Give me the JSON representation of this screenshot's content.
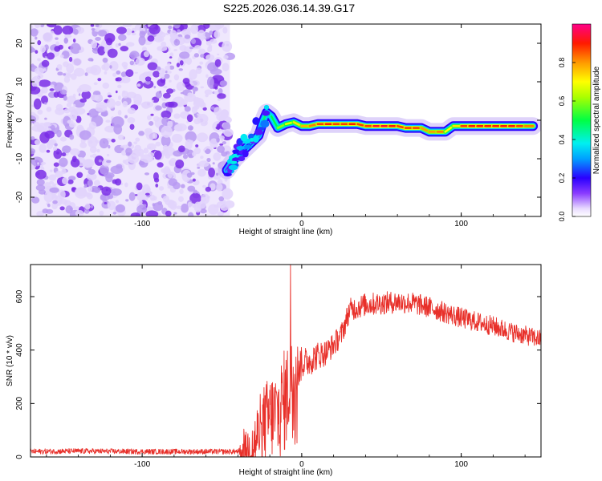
{
  "title": "S225.2026.036.14.39.G17",
  "colors": {
    "background": "#ffffff",
    "axis": "#000000",
    "snr_line": "#e8302a",
    "noise_light": "#e2d4fb",
    "noise_mid": "#b99af2",
    "noise_dark": "#7a2ee6"
  },
  "chart_data": [
    {
      "type": "heatmap",
      "name": "spectrogram",
      "xlabel": "Height of straight line (km)",
      "ylabel": "Frequency (Hz)",
      "xlim": [
        -170,
        150
      ],
      "ylim": [
        -25,
        25
      ],
      "xticks": [
        -100,
        0,
        100
      ],
      "xtick_labels": [
        "-100",
        "0",
        "100"
      ],
      "yticks": [
        -20,
        -10,
        0,
        10,
        20
      ],
      "ytick_labels": [
        "-20",
        "-10",
        "0",
        "10",
        "20"
      ],
      "colorbar": {
        "label": "Normalized spectral amplitude",
        "range": [
          0,
          1
        ],
        "ticks": [
          0.0,
          0.2,
          0.4,
          0.6,
          0.8
        ],
        "tick_labels": [
          "0.0",
          "0.2",
          "0.4",
          "0.6",
          "0.8"
        ]
      },
      "noise_region": {
        "x_start": -170,
        "x_end": -45,
        "amplitude_range": [
          0.0,
          0.05
        ]
      },
      "ridge": [
        {
          "x": -47,
          "y": -13,
          "amp": 0.15
        },
        {
          "x": -42,
          "y": -10,
          "amp": 0.2
        },
        {
          "x": -37,
          "y": -8,
          "amp": 0.25
        },
        {
          "x": -32,
          "y": -6,
          "amp": 0.3
        },
        {
          "x": -27,
          "y": -4,
          "amp": 0.35
        },
        {
          "x": -24,
          "y": 0,
          "amp": 0.45
        },
        {
          "x": -22,
          "y": 2,
          "amp": 0.5
        },
        {
          "x": -19,
          "y": 1,
          "amp": 0.45
        },
        {
          "x": -15,
          "y": -2,
          "amp": 0.55
        },
        {
          "x": -10,
          "y": -1,
          "amp": 0.65
        },
        {
          "x": -5,
          "y": -0.5,
          "amp": 0.7
        },
        {
          "x": 0,
          "y": -1.5,
          "amp": 0.75
        },
        {
          "x": 5,
          "y": -1.5,
          "amp": 0.8
        },
        {
          "x": 10,
          "y": -1,
          "amp": 0.85
        },
        {
          "x": 15,
          "y": -1,
          "amp": 0.9
        },
        {
          "x": 20,
          "y": -1,
          "amp": 0.9
        },
        {
          "x": 25,
          "y": -1,
          "amp": 0.85
        },
        {
          "x": 30,
          "y": -1,
          "amp": 0.9
        },
        {
          "x": 35,
          "y": -1,
          "amp": 0.9
        },
        {
          "x": 40,
          "y": -1.5,
          "amp": 0.85
        },
        {
          "x": 45,
          "y": -1.5,
          "amp": 0.9
        },
        {
          "x": 50,
          "y": -1.5,
          "amp": 0.95
        },
        {
          "x": 55,
          "y": -1.5,
          "amp": 0.9
        },
        {
          "x": 60,
          "y": -1.5,
          "amp": 0.9
        },
        {
          "x": 65,
          "y": -2,
          "amp": 0.85
        },
        {
          "x": 70,
          "y": -2,
          "amp": 0.9
        },
        {
          "x": 75,
          "y": -2,
          "amp": 0.85
        },
        {
          "x": 80,
          "y": -3,
          "amp": 0.75
        },
        {
          "x": 85,
          "y": -3,
          "amp": 0.85
        },
        {
          "x": 90,
          "y": -3,
          "amp": 0.8
        },
        {
          "x": 95,
          "y": -1.5,
          "amp": 0.6
        },
        {
          "x": 100,
          "y": -1.5,
          "amp": 0.85
        },
        {
          "x": 105,
          "y": -1.5,
          "amp": 0.9
        },
        {
          "x": 110,
          "y": -1.5,
          "amp": 0.9
        },
        {
          "x": 115,
          "y": -1.5,
          "amp": 0.9
        },
        {
          "x": 120,
          "y": -1.5,
          "amp": 0.9
        },
        {
          "x": 125,
          "y": -1.5,
          "amp": 0.9
        },
        {
          "x": 130,
          "y": -1.5,
          "amp": 0.9
        },
        {
          "x": 135,
          "y": -1.5,
          "amp": 0.9
        },
        {
          "x": 140,
          "y": -1.5,
          "amp": 0.85
        },
        {
          "x": 145,
          "y": -1.5,
          "amp": 0.8
        }
      ]
    },
    {
      "type": "line",
      "name": "snr",
      "xlabel": "Height of straight line (km)",
      "ylabel": "SNR (10 * v/v)",
      "xlim": [
        -170,
        150
      ],
      "ylim": [
        0,
        720
      ],
      "xticks": [
        -100,
        0,
        100
      ],
      "xtick_labels": [
        "-100",
        "0",
        "100"
      ],
      "yticks": [
        0,
        200,
        400,
        600
      ],
      "ytick_labels": [
        "0",
        "200",
        "400",
        "600"
      ],
      "trend": {
        "x": [
          -170,
          -140,
          -100,
          -60,
          -40,
          -30,
          -25,
          -20,
          -15,
          -10,
          -5,
          0,
          5,
          10,
          15,
          20,
          25,
          30,
          40,
          50,
          60,
          70,
          80,
          90,
          100,
          110,
          120,
          130,
          140,
          150
        ],
        "y": [
          20,
          22,
          20,
          20,
          20,
          40,
          120,
          150,
          160,
          220,
          320,
          350,
          360,
          380,
          390,
          420,
          460,
          550,
          570,
          575,
          580,
          575,
          560,
          540,
          520,
          505,
          490,
          470,
          455,
          440
        ]
      },
      "noise_amplitude": {
        "x": [
          -170,
          -40,
          -30,
          -10,
          0,
          20,
          150
        ],
        "y": [
          10,
          10,
          120,
          200,
          60,
          45,
          35
        ]
      },
      "peak": {
        "x": -7,
        "y": 720
      }
    }
  ]
}
